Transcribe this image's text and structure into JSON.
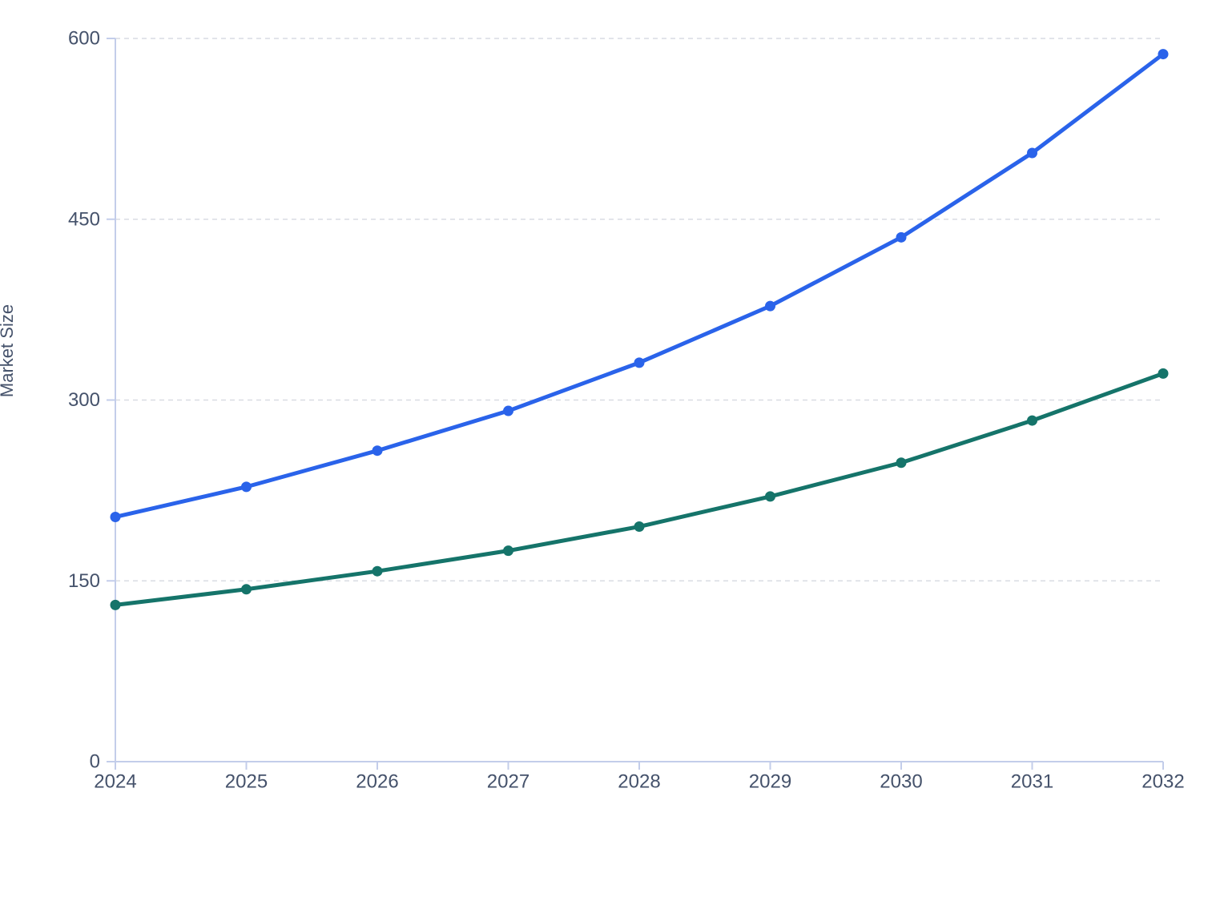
{
  "chart_data": {
    "type": "line",
    "title": "",
    "xlabel": "",
    "ylabel": "Market Size",
    "x": [
      2024,
      2025,
      2026,
      2027,
      2028,
      2029,
      2030,
      2031,
      2032
    ],
    "x_tick_labels": [
      "2024",
      "2025",
      "2026",
      "2027",
      "2028",
      "2029",
      "2030",
      "2031",
      "2032"
    ],
    "y_ticks": [
      0,
      150,
      300,
      450,
      600
    ],
    "y_tick_labels": [
      "0",
      "150",
      "300",
      "450",
      "600"
    ],
    "ylim": [
      0,
      600
    ],
    "grid": "horizontal-dashed",
    "legend_position": "none",
    "series": [
      {
        "id": "upper-line",
        "color": "#2a63ea",
        "marker": "circle",
        "values": [
          203,
          228,
          258,
          291,
          331,
          378,
          435,
          505,
          587
        ]
      },
      {
        "id": "lower-line",
        "color": "#15746a",
        "marker": "circle",
        "values": [
          130,
          143,
          158,
          175,
          195,
          220,
          248,
          283,
          322
        ]
      }
    ]
  },
  "style_colors": {
    "axis_line": "#c3cdea",
    "gridline": "#d9dce3",
    "tick_text": "#45526b"
  }
}
